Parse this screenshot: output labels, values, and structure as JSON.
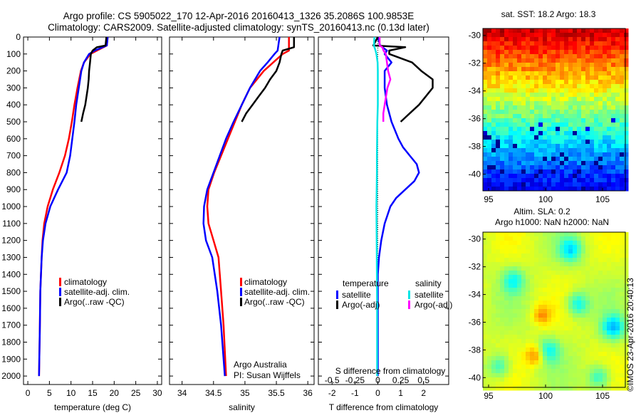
{
  "header": {
    "line1": "Argo profile: CS 5905022_170 12-Apr-2016 20160413_1326 35.2086S 100.9853E",
    "line2": "Climatology: CARS2009. Satellite-adjusted climatology: synTS_20160413.nc (0.13d later)"
  },
  "colors": {
    "climatology": "#ff0000",
    "satellite": "#0000ff",
    "argo": "#000000",
    "sal_satellite": "#00e5e5",
    "sal_argo": "#ff00ff"
  },
  "chart_data": [
    {
      "id": "temperature",
      "type": "line",
      "xlabel": "temperature (deg C)",
      "ylabel": "",
      "xlim": [
        -1,
        31
      ],
      "ylim": [
        2050,
        0
      ],
      "xticks": [
        "0",
        "5",
        "10",
        "15",
        "20",
        "25",
        "30"
      ],
      "xtick_values": [
        0,
        5,
        10,
        15,
        20,
        25,
        30
      ],
      "yticks": [
        "0",
        "100",
        "200",
        "300",
        "400",
        "500",
        "600",
        "700",
        "800",
        "900",
        "1000",
        "1100",
        "1200",
        "1300",
        "1400",
        "1500",
        "1600",
        "1700",
        "1800",
        "1900",
        "2000"
      ],
      "ytick_values": [
        0,
        100,
        200,
        300,
        400,
        500,
        600,
        700,
        800,
        900,
        1000,
        1100,
        1200,
        1300,
        1400,
        1500,
        1600,
        1700,
        1800,
        1900,
        2000
      ],
      "legend": [
        "climatology",
        "satellite-adj. clim.",
        "Argo(..raw -QC)"
      ],
      "legend_position": "bottom-center",
      "series": [
        {
          "name": "climatology",
          "color_key": "climatology",
          "depth": [
            0,
            50,
            80,
            100,
            150,
            200,
            300,
            400,
            500,
            600,
            700,
            800,
            900,
            1000,
            1100,
            1200,
            1300,
            1500,
            1700,
            2000
          ],
          "values": [
            18.5,
            18.3,
            16,
            14.5,
            13,
            12.3,
            11.5,
            10.8,
            10.2,
            9.5,
            8.6,
            7.3,
            5.8,
            4.6,
            3.8,
            3.4,
            3.2,
            2.9,
            2.8,
            2.6
          ]
        },
        {
          "name": "satellite-adj. clim.",
          "color_key": "satellite",
          "depth": [
            0,
            50,
            80,
            100,
            150,
            200,
            300,
            400,
            500,
            600,
            700,
            800,
            900,
            1000,
            1100,
            1200,
            1300,
            1500,
            1700,
            2000
          ],
          "values": [
            18.5,
            18.3,
            15.5,
            14.2,
            13,
            12.4,
            11.8,
            11.2,
            10.8,
            10.3,
            9.8,
            9,
            7,
            5.2,
            4.1,
            3.5,
            3.2,
            2.9,
            2.8,
            2.6
          ]
        },
        {
          "name": "Argo(..raw -QC)",
          "color_key": "argo",
          "depth": [
            0,
            50,
            60,
            80,
            100,
            150,
            200,
            250,
            300,
            350,
            400,
            450,
            500
          ],
          "values": [
            18.2,
            18,
            16,
            15,
            14.6,
            14.4,
            14.2,
            14.1,
            13.9,
            13.6,
            13.3,
            12.8,
            12.4
          ]
        }
      ]
    },
    {
      "id": "salinity",
      "type": "line",
      "xlabel": "salinity",
      "ylabel": "",
      "xlim": [
        33.8,
        36.1
      ],
      "ylim": [
        2050,
        0
      ],
      "xticks": [
        "34",
        "34.5",
        "35",
        "35.5",
        "36"
      ],
      "xtick_values": [
        34,
        34.5,
        35,
        35.5,
        36
      ],
      "legend": [
        "climatology",
        "satellite-adj. clim.",
        "Argo(..raw -QC)"
      ],
      "legend_position": "bottom-right",
      "annotation": [
        "Argo Australia",
        "PI: Susan Wijffels"
      ],
      "series": [
        {
          "name": "climatology",
          "color_key": "climatology",
          "depth": [
            0,
            80,
            100,
            150,
            200,
            300,
            400,
            500,
            600,
            700,
            800,
            900,
            1000,
            1100,
            1200,
            1300,
            1500,
            1700,
            2000
          ],
          "values": [
            35.7,
            35.7,
            35.6,
            35.45,
            35.3,
            35.08,
            34.95,
            34.84,
            34.73,
            34.62,
            34.51,
            34.42,
            34.4,
            34.42,
            34.5,
            34.58,
            34.62,
            34.66,
            34.7
          ]
        },
        {
          "name": "satellite-adj. clim.",
          "color_key": "satellite",
          "depth": [
            0,
            80,
            100,
            150,
            200,
            300,
            400,
            500,
            600,
            700,
            800,
            900,
            1000,
            1100,
            1200,
            1300,
            1500,
            1700,
            2000
          ],
          "values": [
            35.55,
            35.52,
            35.47,
            35.36,
            35.24,
            35.08,
            34.95,
            34.82,
            34.7,
            34.6,
            34.5,
            34.4,
            34.35,
            34.34,
            34.38,
            34.48,
            34.56,
            34.62,
            34.68
          ]
        },
        {
          "name": "Argo(..raw -QC)",
          "color_key": "argo",
          "depth": [
            0,
            60,
            80,
            100,
            150,
            200,
            250,
            300,
            350,
            400,
            450,
            500
          ],
          "values": [
            35.78,
            35.78,
            35.6,
            35.58,
            35.55,
            35.5,
            35.4,
            35.32,
            35.22,
            35.12,
            35.02,
            34.95
          ]
        }
      ]
    },
    {
      "id": "difference",
      "type": "line",
      "xlabel": "T difference from climatology",
      "xlabel_top": "S difference from climatology",
      "xlim": [
        -2.6,
        3.1
      ],
      "ylim": [
        2050,
        0
      ],
      "xticks": [
        "-2",
        "-1",
        "0",
        "1",
        "2"
      ],
      "xtick_values": [
        -2,
        -1,
        0,
        1,
        2
      ],
      "s_ticks": [
        "-0.5",
        "-0.25",
        "0",
        "0.25",
        "0.5"
      ],
      "s_tick_values": [
        -0.5,
        -0.25,
        0,
        0.25,
        0.5
      ],
      "legend_left_title": "temperature",
      "legend_right_title": "salinity",
      "legend_left": [
        "satellite",
        "Argo(-adj)"
      ],
      "legend_right": [
        "satellite",
        "Argo(-adj)"
      ],
      "series": [
        {
          "name": "temperature satellite",
          "color_key": "satellite",
          "depth": [
            0,
            50,
            80,
            100,
            150,
            200,
            300,
            400,
            500,
            600,
            650,
            700,
            750,
            800,
            850,
            900,
            950,
            1000,
            1100,
            1200,
            1300,
            1400,
            1600,
            1800,
            2000
          ],
          "values": [
            0,
            0.1,
            0.4,
            0.3,
            0.6,
            0.3,
            0.3,
            0.4,
            0.6,
            0.9,
            1.1,
            1.4,
            1.7,
            1.8,
            1.6,
            1.2,
            0.8,
            0.55,
            0.3,
            0.15,
            0.05,
            0,
            0,
            0,
            0
          ]
        },
        {
          "name": "temperature Argo(-adj)",
          "color_key": "argo",
          "depth": [
            0,
            50,
            60,
            80,
            100,
            150,
            200,
            250,
            300,
            350,
            400,
            450,
            500
          ],
          "values": [
            0,
            -0.2,
            1.2,
            0.5,
            0.5,
            1.5,
            1.9,
            2.4,
            2.4,
            2.1,
            1.8,
            1.4,
            1
          ]
        },
        {
          "name": "salinity satellite",
          "color_key": "sal_satellite",
          "depth": [
            0,
            50,
            80,
            100,
            150,
            200,
            300,
            400,
            500,
            600,
            700,
            800,
            900,
            1000,
            1200,
            1400,
            1600,
            1800,
            2000
          ],
          "values": [
            -0.15,
            -0.17,
            -0.1,
            -0.06,
            -0.01,
            0,
            0,
            0,
            -0.02,
            -0.03,
            -0.04,
            -0.04,
            -0.05,
            -0.06,
            -0.05,
            -0.04,
            -0.03,
            -0.03,
            -0.03
          ]
        },
        {
          "name": "salinity Argo(-adj)",
          "color_key": "sal_argo",
          "depth": [
            0,
            50,
            60,
            80,
            100,
            150,
            200,
            250,
            300,
            350,
            400,
            450,
            500
          ],
          "values": [
            0.08,
            0.08,
            0.2,
            0.25,
            0.35,
            0.4,
            0.45,
            0.55,
            0.42,
            0.36,
            0.3,
            0.24,
            0.24
          ]
        }
      ]
    },
    {
      "id": "sst-map",
      "type": "heatmap",
      "title": "sat. SST: 18.2 Argo: 18.3",
      "xticks": [
        "95",
        "100",
        "105"
      ],
      "xtick_values": [
        95,
        100,
        105
      ],
      "yticks": [
        "-30",
        "-32",
        "-34",
        "-36",
        "-38",
        "-40"
      ],
      "ytick_values": [
        -30,
        -32,
        -34,
        -36,
        -38,
        -40
      ],
      "xlim": [
        94.5,
        107
      ],
      "ylim": [
        -41.2,
        -29.5
      ]
    },
    {
      "id": "sla-map",
      "type": "heatmap",
      "title_lines": [
        "Altim. SLA: 0.2",
        "Argo h1000: NaN h2000: NaN"
      ],
      "xticks": [
        "95",
        "100",
        "105"
      ],
      "xtick_values": [
        95,
        100,
        105
      ],
      "yticks": [
        "-30",
        "-32",
        "-34",
        "-36",
        "-38",
        "-40"
      ],
      "ytick_values": [
        -30,
        -32,
        -34,
        -36,
        -38,
        -40
      ],
      "xlim": [
        94.5,
        107
      ],
      "ylim": [
        -40.7,
        -29.5
      ]
    }
  ],
  "footer": {
    "stamp": "©IMOS 23-Apr-2016 20:40:13"
  }
}
